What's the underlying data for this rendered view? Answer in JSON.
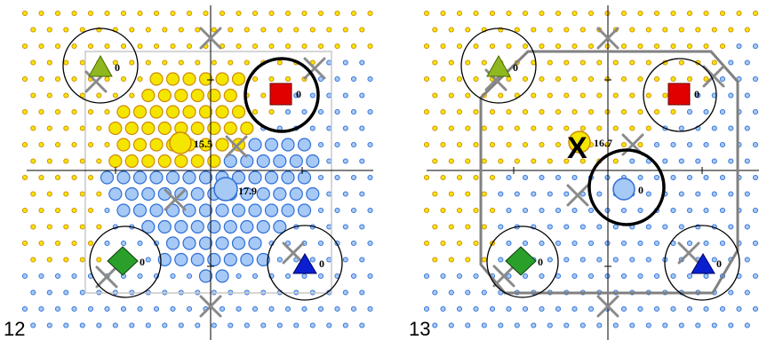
{
  "colors": {
    "yellow": "#f5e600",
    "orange_stroke": "#d08a00",
    "blue": "#a6c9f5",
    "blue_stroke": "#2f6fd6",
    "green": "#8fb820",
    "red": "#e00000",
    "diamond": "#2aa02a",
    "dark_blue": "#0a1fd0",
    "x_mark": "#8a8a8a",
    "hull_gray": "#808080"
  },
  "panels": [
    {
      "number": "12",
      "icons": {
        "green_triangle": "triangle-icon",
        "red_square": "square-icon",
        "yellow_circle": "circle-icon",
        "blue_circle": "circle-icon",
        "green_diamond": "diamond-icon",
        "blue_triangle": "triangle-icon"
      },
      "labels": {
        "green_triangle": "0",
        "red_square": "0",
        "yellow_circle": "15.5",
        "blue_circle": "17.9",
        "green_diamond": "0",
        "blue_triangle": "0"
      }
    },
    {
      "number": "13",
      "icons": {
        "green_triangle": "triangle-icon",
        "red_square": "square-icon",
        "yellow_circle": "circle-icon",
        "blue_circle": "circle-icon",
        "green_diamond": "diamond-icon",
        "blue_triangle": "triangle-icon"
      },
      "labels": {
        "green_triangle": "0",
        "red_square": "0",
        "yellow_circle": "16.7",
        "blue_circle": "0",
        "green_diamond": "0",
        "blue_triangle": "0"
      },
      "x_mark": "X"
    }
  ]
}
